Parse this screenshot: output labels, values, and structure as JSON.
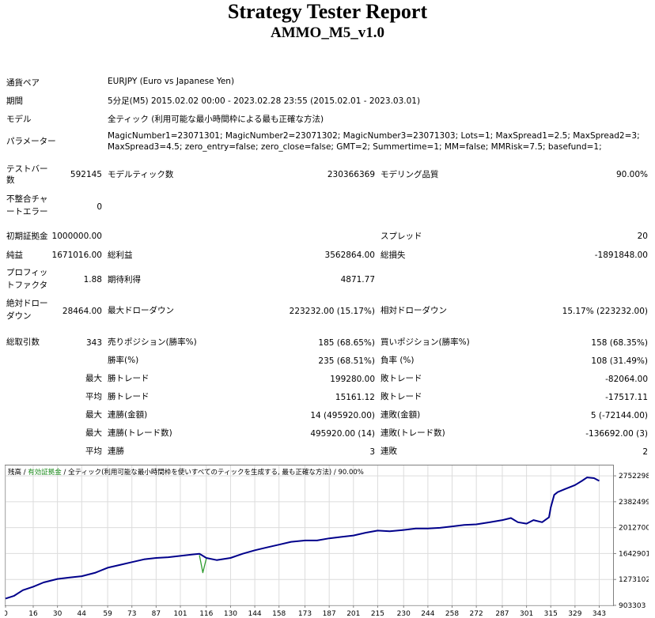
{
  "header": {
    "title": "Strategy Tester Report",
    "subtitle": "AMMO_M5_v1.0"
  },
  "info": {
    "pair_label": "通貨ペア",
    "pair_value": "EURJPY (Euro vs Japanese Yen)",
    "period_label": "期間",
    "period_value": "5分足(M5) 2015.02.02 00:00 - 2023.02.28 23:55 (2015.02.01 - 2023.03.01)",
    "model_label": "モデル",
    "model_value": "全ティック (利用可能な最小時間枠による最も正確な方法)",
    "params_label": "パラメーター",
    "params_line1": "MagicNumber1=23071301; MagicNumber2=23071302; MagicNumber3=23071303; Lots=1; MaxSpread1=2.5; MaxSpread2=3;",
    "params_line2": "MaxSpread3=4.5; zero_entry=false; zero_close=false; GMT=2; Summertime=1; MM=false; MMRisk=7.5; basefund=1;"
  },
  "stats": {
    "bars_label_1": "テストバー",
    "bars_label_2": "数",
    "bars_value": "592145",
    "ticks_label": "モデルティック数",
    "ticks_value": "230366369",
    "quality_label": "モデリング品質",
    "quality_value": "90.00%",
    "mismatch_label_1": "不整合チャ",
    "mismatch_label_2": "ートエラー",
    "mismatch_value": "0",
    "deposit_label": "初期証拠金",
    "deposit_value": "1000000.00",
    "spread_label": "スプレッド",
    "spread_value": "20",
    "net_label": "純益",
    "net_value": "1671016.00",
    "gross_profit_label": "総利益",
    "gross_profit_value": "3562864.00",
    "gross_loss_label": "総損失",
    "gross_loss_value": "-1891848.00",
    "pf_label_1": "プロフィッ",
    "pf_label_2": "トファクタ",
    "pf_value": "1.88",
    "expected_label": "期待利得",
    "expected_value": "4871.77",
    "abs_dd_label_1": "絶対ドロー",
    "abs_dd_label_2": "ダウン",
    "abs_dd_value": "28464.00",
    "max_dd_label": "最大ドローダウン",
    "max_dd_value": "223232.00 (15.17%)",
    "rel_dd_label": "相対ドローダウン",
    "rel_dd_value": "15.17% (223232.00)",
    "total_trades_label": "総取引数",
    "total_trades_value": "343",
    "short_label": "売りポジション(勝率%)",
    "short_value": "185 (68.65%)",
    "long_label": "買いポジション(勝率%)",
    "long_value": "158 (68.35%)",
    "win_rate_label": "勝率(%)",
    "win_rate_value": "235 (68.51%)",
    "loss_rate_label": "負率 (%)",
    "loss_rate_value": "108 (31.49%)",
    "max_prefix_1": "最大",
    "max_win_label": "勝トレード",
    "max_win_value": "199280.00",
    "max_loss_label": "敗トレード",
    "max_loss_value": "-82064.00",
    "avg_prefix_1": "平均",
    "avg_win_label": "勝トレード",
    "avg_win_value": "15161.12",
    "avg_loss_label": "敗トレード",
    "avg_loss_value": "-17517.11",
    "max_prefix_2": "最大",
    "cons_win_amt_label": "連勝(金額)",
    "cons_win_amt_value": "14 (495920.00)",
    "cons_loss_amt_label": "連敗(金額)",
    "cons_loss_amt_value": "5 (-72144.00)",
    "max_prefix_3": "最大",
    "cons_win_cnt_label": "連勝(トレード数)",
    "cons_win_cnt_value": "495920.00 (14)",
    "cons_loss_cnt_label": "連敗(トレード数)",
    "cons_loss_cnt_value": "-136692.00 (3)",
    "avg_prefix_2": "平均",
    "avg_cons_win_label": "連勝",
    "avg_cons_win_value": "3",
    "avg_cons_loss_label": "連敗",
    "avg_cons_loss_value": "2"
  },
  "chart_data": {
    "type": "line",
    "legend": {
      "balance": "残高",
      "sep1": " / ",
      "equity": "有効証拠金",
      "sep2": " / ",
      "model": "全ティック(利用可能な最小時間枠を使いすべてのティックを生成する, 最も正確な方法)",
      "sep3": " / ",
      "quality": "90.00%"
    },
    "x_ticks": [
      0,
      16,
      30,
      44,
      59,
      73,
      87,
      101,
      116,
      130,
      144,
      158,
      173,
      187,
      201,
      215,
      230,
      244,
      258,
      272,
      287,
      301,
      315,
      329,
      343
    ],
    "y_ticks": [
      903303,
      1273102,
      1642901,
      2012700,
      2382499,
      2752298
    ],
    "xlim": [
      0,
      351
    ],
    "ylim": [
      903303,
      2900000
    ],
    "colors": {
      "balance": "#00008b",
      "equity": "#2e9b2e",
      "grid": "#dcdcdc"
    },
    "series": [
      {
        "key": "balance",
        "x": [
          0,
          5,
          10,
          16,
          22,
          30,
          37,
          44,
          52,
          59,
          66,
          73,
          80,
          87,
          94,
          101,
          108,
          112,
          116,
          122,
          130,
          137,
          144,
          151,
          158,
          165,
          173,
          180,
          187,
          194,
          201,
          208,
          215,
          222,
          230,
          237,
          244,
          251,
          258,
          265,
          272,
          280,
          287,
          292,
          296,
          301,
          305,
          310,
          314,
          315,
          317,
          319,
          323,
          329,
          333,
          336,
          340,
          343
        ],
        "y": [
          1000000,
          1040000,
          1120000,
          1170000,
          1230000,
          1280000,
          1300000,
          1320000,
          1370000,
          1440000,
          1480000,
          1520000,
          1560000,
          1580000,
          1590000,
          1610000,
          1630000,
          1640000,
          1580000,
          1550000,
          1580000,
          1640000,
          1690000,
          1730000,
          1770000,
          1810000,
          1830000,
          1830000,
          1860000,
          1880000,
          1900000,
          1940000,
          1970000,
          1960000,
          1980000,
          2000000,
          2000000,
          2010000,
          2030000,
          2050000,
          2060000,
          2090000,
          2120000,
          2150000,
          2090000,
          2070000,
          2120000,
          2090000,
          2160000,
          2300000,
          2480000,
          2520000,
          2560000,
          2620000,
          2680000,
          2730000,
          2720000,
          2680000
        ]
      },
      {
        "key": "equity",
        "x": [
          112,
          114,
          116
        ],
        "y": [
          1620000,
          1370000,
          1570000
        ]
      }
    ]
  }
}
